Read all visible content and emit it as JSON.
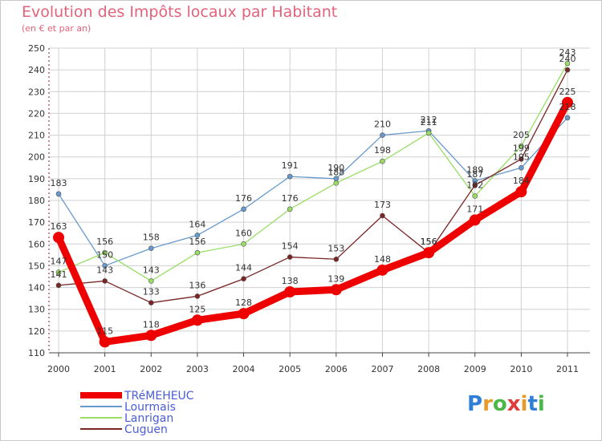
{
  "title": "Evolution des Impôts locaux par Habitant",
  "subtitle": "(en € et par an)",
  "logo": "Proxiti",
  "colors": {
    "title": "#e2637a",
    "axis_left": "#8b1a2f",
    "grid": "#d0d0d0",
    "legend_text": "#4a5dd6"
  },
  "chart_data": {
    "type": "line",
    "title": "Evolution des Impôts locaux par Habitant",
    "subtitle": "(en € et par an)",
    "xlabel": "",
    "ylabel": "",
    "ylim": [
      110,
      250
    ],
    "yticks": [
      110,
      120,
      130,
      140,
      150,
      160,
      170,
      180,
      190,
      200,
      210,
      220,
      230,
      240,
      250
    ],
    "categories": [
      "2000",
      "2001",
      "2002",
      "2003",
      "2004",
      "2005",
      "2006",
      "2007",
      "2008",
      "2009",
      "2010",
      "2011"
    ],
    "grid": true,
    "legend": "bottom-left",
    "series": [
      {
        "name": "TRéMEHEUC",
        "color": "#ee0000",
        "width": 9,
        "marker": 7,
        "values": [
          163,
          115,
          118,
          125,
          128,
          138,
          139,
          148,
          156,
          171,
          184,
          225
        ]
      },
      {
        "name": "Lourmais",
        "color": "#6699cc",
        "width": 1.3,
        "marker": 3,
        "values": [
          183,
          150,
          158,
          164,
          176,
          191,
          190,
          210,
          212,
          189,
          195,
          218
        ]
      },
      {
        "name": "Lanrigan",
        "color": "#99dd66",
        "width": 1.3,
        "marker": 3,
        "values": [
          147,
          156,
          143,
          156,
          160,
          176,
          188,
          198,
          211,
          182,
          205,
          243
        ]
      },
      {
        "name": "Cuguen",
        "color": "#7a2424",
        "width": 1.3,
        "marker": 3,
        "values": [
          141,
          143,
          133,
          136,
          144,
          154,
          153,
          173,
          156,
          187,
          199,
          240
        ]
      }
    ]
  }
}
